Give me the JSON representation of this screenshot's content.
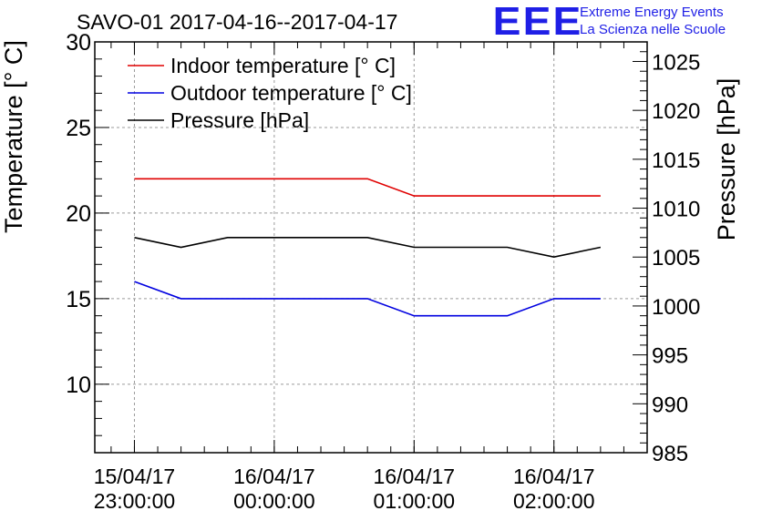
{
  "logo": {
    "mark": "EEE",
    "line1": "Extreme Energy Events",
    "line2": "La Scienza nelle Scuole",
    "color": "#1f1fe6"
  },
  "chart_data": {
    "type": "line",
    "title": "SAVO-01 2017-04-16--2017-04-17",
    "xlabel": "",
    "ylabel": "Temperature [° C]",
    "y2label": "Pressure [hPa]",
    "x_ticks": [
      {
        "x": "2017-04-15 23:00:00",
        "line1": "15/04/17",
        "line2": "23:00:00"
      },
      {
        "x": "2017-04-16 00:00:00",
        "line1": "16/04/17",
        "line2": "00:00:00"
      },
      {
        "x": "2017-04-16 01:00:00",
        "line1": "16/04/17",
        "line2": "01:00:00"
      },
      {
        "x": "2017-04-16 02:00:00",
        "line1": "16/04/17",
        "line2": "02:00:00"
      }
    ],
    "xlim": [
      "2017-04-15 22:43:00",
      "2017-04-16 02:40:00"
    ],
    "ylim": [
      6,
      30
    ],
    "y_ticks": [
      10,
      15,
      20,
      25,
      30
    ],
    "y2lim": [
      985,
      1027
    ],
    "y2_ticks": [
      985,
      990,
      995,
      1000,
      1005,
      1010,
      1015,
      1020,
      1025
    ],
    "grid": true,
    "legend_position": "top-left",
    "series": [
      {
        "name": "Indoor temperature [° C]",
        "axis": "left",
        "color": "#e00000",
        "points": [
          [
            "2017-04-15 23:00:00",
            22
          ],
          [
            "2017-04-16 00:40:00",
            22
          ],
          [
            "2017-04-16 01:00:00",
            21
          ],
          [
            "2017-04-16 02:20:00",
            21
          ]
        ]
      },
      {
        "name": "Outdoor temperature [° C]",
        "axis": "left",
        "color": "#0000e0",
        "points": [
          [
            "2017-04-15 23:00:00",
            16
          ],
          [
            "2017-04-15 23:20:00",
            15
          ],
          [
            "2017-04-16 00:40:00",
            15
          ],
          [
            "2017-04-16 01:00:00",
            14
          ],
          [
            "2017-04-16 01:40:00",
            14
          ],
          [
            "2017-04-16 02:00:00",
            15
          ],
          [
            "2017-04-16 02:20:00",
            15
          ]
        ]
      },
      {
        "name": "Pressure [hPa]",
        "axis": "right",
        "color": "#000000",
        "points": [
          [
            "2017-04-15 23:00:00",
            1007
          ],
          [
            "2017-04-15 23:20:00",
            1006
          ],
          [
            "2017-04-15 23:40:00",
            1007
          ],
          [
            "2017-04-16 00:40:00",
            1007
          ],
          [
            "2017-04-16 01:00:00",
            1006
          ],
          [
            "2017-04-16 01:40:00",
            1006
          ],
          [
            "2017-04-16 02:00:00",
            1005
          ],
          [
            "2017-04-16 02:20:00",
            1006
          ]
        ]
      }
    ]
  }
}
